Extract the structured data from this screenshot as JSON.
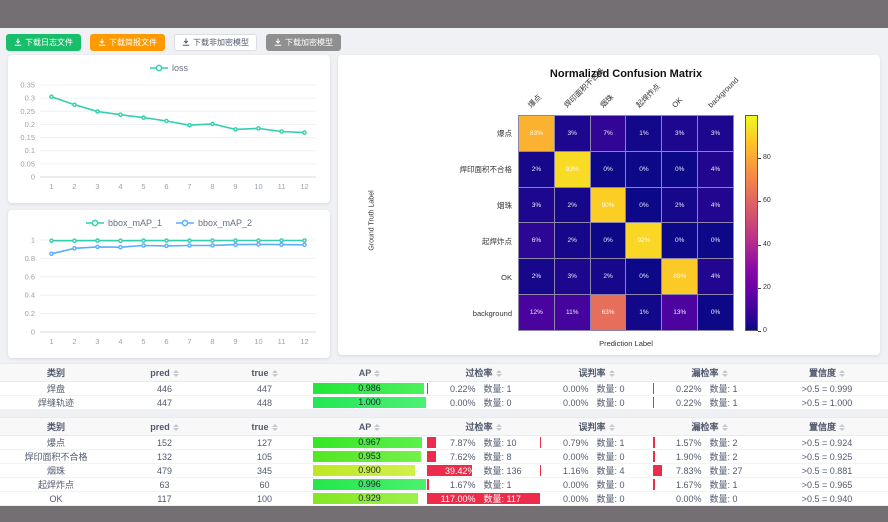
{
  "toolbar": {
    "buttons": [
      {
        "label": "下载日志文件",
        "bg": "#19be6b",
        "fg": "#ffffff",
        "border": "#19be6b"
      },
      {
        "label": "下载简报文件",
        "bg": "#ff9900",
        "fg": "#ffffff",
        "border": "#ff9900"
      },
      {
        "label": "下载非加密模型",
        "bg": "#ffffff",
        "fg": "#515a6e",
        "border": "#dcdee2"
      },
      {
        "label": "下载加密模型",
        "bg": "#8f8f8f",
        "fg": "#ffffff",
        "border": "#8f8f8f"
      }
    ]
  },
  "chart_data": [
    {
      "type": "line",
      "title": "",
      "legend_position": "top",
      "x": [
        1,
        2,
        3,
        4,
        5,
        6,
        7,
        8,
        9,
        10,
        11,
        12
      ],
      "ylim": [
        0,
        0.35
      ],
      "yticks": [
        "0",
        "0.05",
        "0.1",
        "0.15",
        "0.2",
        "0.25",
        "0.3",
        "0.35"
      ],
      "grid": true,
      "series": [
        {
          "name": "loss",
          "color": "#33cfae",
          "values": [
            0.305,
            0.275,
            0.249,
            0.237,
            0.226,
            0.213,
            0.197,
            0.202,
            0.181,
            0.185,
            0.173,
            0.169
          ]
        }
      ]
    },
    {
      "type": "line",
      "title": "",
      "legend_position": "top",
      "x": [
        1,
        2,
        3,
        4,
        5,
        6,
        7,
        8,
        9,
        10,
        11,
        12
      ],
      "ylim": [
        0,
        1
      ],
      "yticks": [
        "0",
        "0.2",
        "0.4",
        "0.6",
        "0.8",
        "1"
      ],
      "grid": true,
      "series": [
        {
          "name": "bbox_mAP_1",
          "color": "#33cfae",
          "values": [
            0.992,
            0.992,
            0.993,
            0.992,
            0.994,
            0.994,
            0.994,
            0.995,
            0.995,
            0.995,
            0.995,
            0.995
          ]
        },
        {
          "name": "bbox_mAP_2",
          "color": "#5cadff",
          "values": [
            0.85,
            0.91,
            0.925,
            0.922,
            0.94,
            0.936,
            0.94,
            0.941,
            0.95,
            0.952,
            0.95,
            0.948
          ]
        }
      ]
    },
    {
      "type": "heatmap",
      "title": "Normalized Confusion Matrix",
      "xlabel": "Prediction Label",
      "ylabel": "Ground Truth Label",
      "labels": [
        "爆点",
        "焊印面积不合格",
        "烟珠",
        "起焊炸点",
        "OK",
        "background"
      ],
      "matrix": [
        [
          83,
          3,
          7,
          1,
          3,
          3
        ],
        [
          2,
          93,
          0,
          0,
          0,
          4
        ],
        [
          3,
          2,
          90,
          0,
          2,
          4
        ],
        [
          6,
          2,
          0,
          92,
          0,
          0
        ],
        [
          2,
          3,
          2,
          0,
          89,
          4
        ],
        [
          12,
          11,
          63,
          1,
          13,
          0
        ]
      ],
      "unit": "%",
      "vmax": 100,
      "colorbar_ticks": [
        0,
        20,
        40,
        60,
        80
      ],
      "colormap": "plasma"
    }
  ],
  "tables": [
    {
      "headers": [
        {
          "label": "类别",
          "sortable": false
        },
        {
          "label": "pred",
          "sortable": true
        },
        {
          "label": "true",
          "sortable": true
        },
        {
          "label": "AP",
          "sortable": true
        },
        {
          "label": "过检率",
          "sortable": true
        },
        {
          "label": "误判率",
          "sortable": true
        },
        {
          "label": "漏检率",
          "sortable": true
        },
        {
          "label": "置信度",
          "sortable": true
        }
      ],
      "rows": [
        {
          "cls": "焊盘",
          "pred": "446",
          "true": "447",
          "ap": 0.986,
          "ap_label": "0.986",
          "rates": [
            {
              "pct": 0.22,
              "label": "0.22%",
              "count": "数量: 1"
            },
            {
              "pct": 0,
              "label": "0.00%",
              "count": "数量: 0"
            },
            {
              "pct": 0.22,
              "label": "0.22%",
              "count": "数量: 1"
            }
          ],
          "conf": ">0.5 = 0.999"
        },
        {
          "cls": "焊缝轨迹",
          "pred": "447",
          "true": "448",
          "ap": 1.0,
          "ap_label": "1.000",
          "rates": [
            {
              "pct": 0,
              "label": "0.00%",
              "count": "数量: 0"
            },
            {
              "pct": 0,
              "label": "0.00%",
              "count": "数量: 0"
            },
            {
              "pct": 0.22,
              "label": "0.22%",
              "count": "数量: 1"
            }
          ],
          "conf": ">0.5 = 1.000"
        }
      ]
    },
    {
      "headers": [
        {
          "label": "类别",
          "sortable": false
        },
        {
          "label": "pred",
          "sortable": true
        },
        {
          "label": "true",
          "sortable": true
        },
        {
          "label": "AP",
          "sortable": true
        },
        {
          "label": "过检率",
          "sortable": true
        },
        {
          "label": "误判率",
          "sortable": true
        },
        {
          "label": "漏检率",
          "sortable": true
        },
        {
          "label": "置信度",
          "sortable": true
        }
      ],
      "rows": [
        {
          "cls": "爆点",
          "pred": "152",
          "true": "127",
          "ap": 0.967,
          "ap_label": "0.967",
          "rates": [
            {
              "pct": 7.87,
              "label": "7.87%",
              "count": "数量: 10"
            },
            {
              "pct": 0.79,
              "label": "0.79%",
              "count": "数量: 1"
            },
            {
              "pct": 1.57,
              "label": "1.57%",
              "count": "数量: 2"
            }
          ],
          "conf": ">0.5 = 0.924"
        },
        {
          "cls": "焊印面积不合格",
          "pred": "132",
          "true": "105",
          "ap": 0.953,
          "ap_label": "0.953",
          "rates": [
            {
              "pct": 7.62,
              "label": "7.62%",
              "count": "数量: 8"
            },
            {
              "pct": 0,
              "label": "0.00%",
              "count": "数量: 0"
            },
            {
              "pct": 1.9,
              "label": "1.90%",
              "count": "数量: 2"
            }
          ],
          "conf": ">0.5 = 0.925"
        },
        {
          "cls": "烟珠",
          "pred": "479",
          "true": "345",
          "ap": 0.9,
          "ap_label": "0.900",
          "rates": [
            {
              "pct": 39.42,
              "label": "39.42%",
              "count": "数量: 136"
            },
            {
              "pct": 1.16,
              "label": "1.16%",
              "count": "数量: 4"
            },
            {
              "pct": 7.83,
              "label": "7.83%",
              "count": "数量: 27"
            }
          ],
          "conf": ">0.5 = 0.881"
        },
        {
          "cls": "起焊炸点",
          "pred": "63",
          "true": "60",
          "ap": 0.996,
          "ap_label": "0.996",
          "rates": [
            {
              "pct": 1.67,
              "label": "1.67%",
              "count": "数量: 1"
            },
            {
              "pct": 0,
              "label": "0.00%",
              "count": "数量: 0"
            },
            {
              "pct": 1.67,
              "label": "1.67%",
              "count": "数量: 1"
            }
          ],
          "conf": ">0.5 = 0.965"
        },
        {
          "cls": "OK",
          "pred": "117",
          "true": "100",
          "ap": 0.929,
          "ap_label": "0.929",
          "rates": [
            {
              "pct": 117,
              "label": "117.00%",
              "count": "数量: 117"
            },
            {
              "pct": 0,
              "label": "0.00%",
              "count": "数量: 0"
            },
            {
              "pct": 0,
              "label": "0.00%",
              "count": "数量: 0"
            }
          ],
          "conf": ">0.5 = 0.940"
        }
      ]
    }
  ],
  "colors": {
    "accent_green": "#19be6b",
    "accent_orange": "#ff9900",
    "rate_bar_red": "#ef2b4b",
    "line_teal": "#33cfae",
    "line_blue": "#5cadff",
    "frame_gray": "#746f72",
    "content_bg": "#eff1f5"
  }
}
